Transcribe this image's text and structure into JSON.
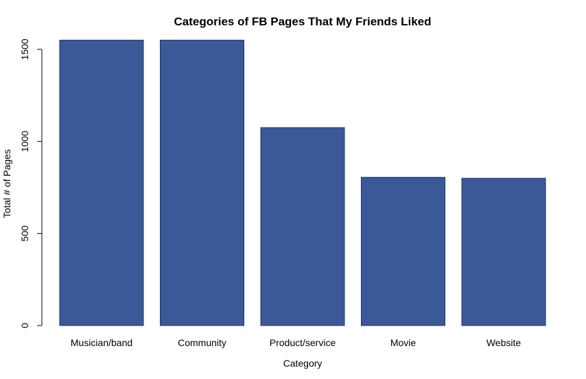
{
  "chart_data": {
    "type": "bar",
    "title": "Categories of FB Pages That My Friends Liked",
    "xlabel": "Category",
    "ylabel": "Total # of Pages",
    "categories": [
      "Musician/band",
      "Community",
      "Product/service",
      "Movie",
      "Website"
    ],
    "values": [
      1550,
      1550,
      1075,
      805,
      800
    ],
    "ylim": [
      0,
      1500
    ],
    "yticks": [
      0,
      500,
      1000,
      1500
    ],
    "grid": false,
    "legend": "none",
    "bar_color": "#3b5998",
    "bar_border_color": "#1f3466"
  }
}
